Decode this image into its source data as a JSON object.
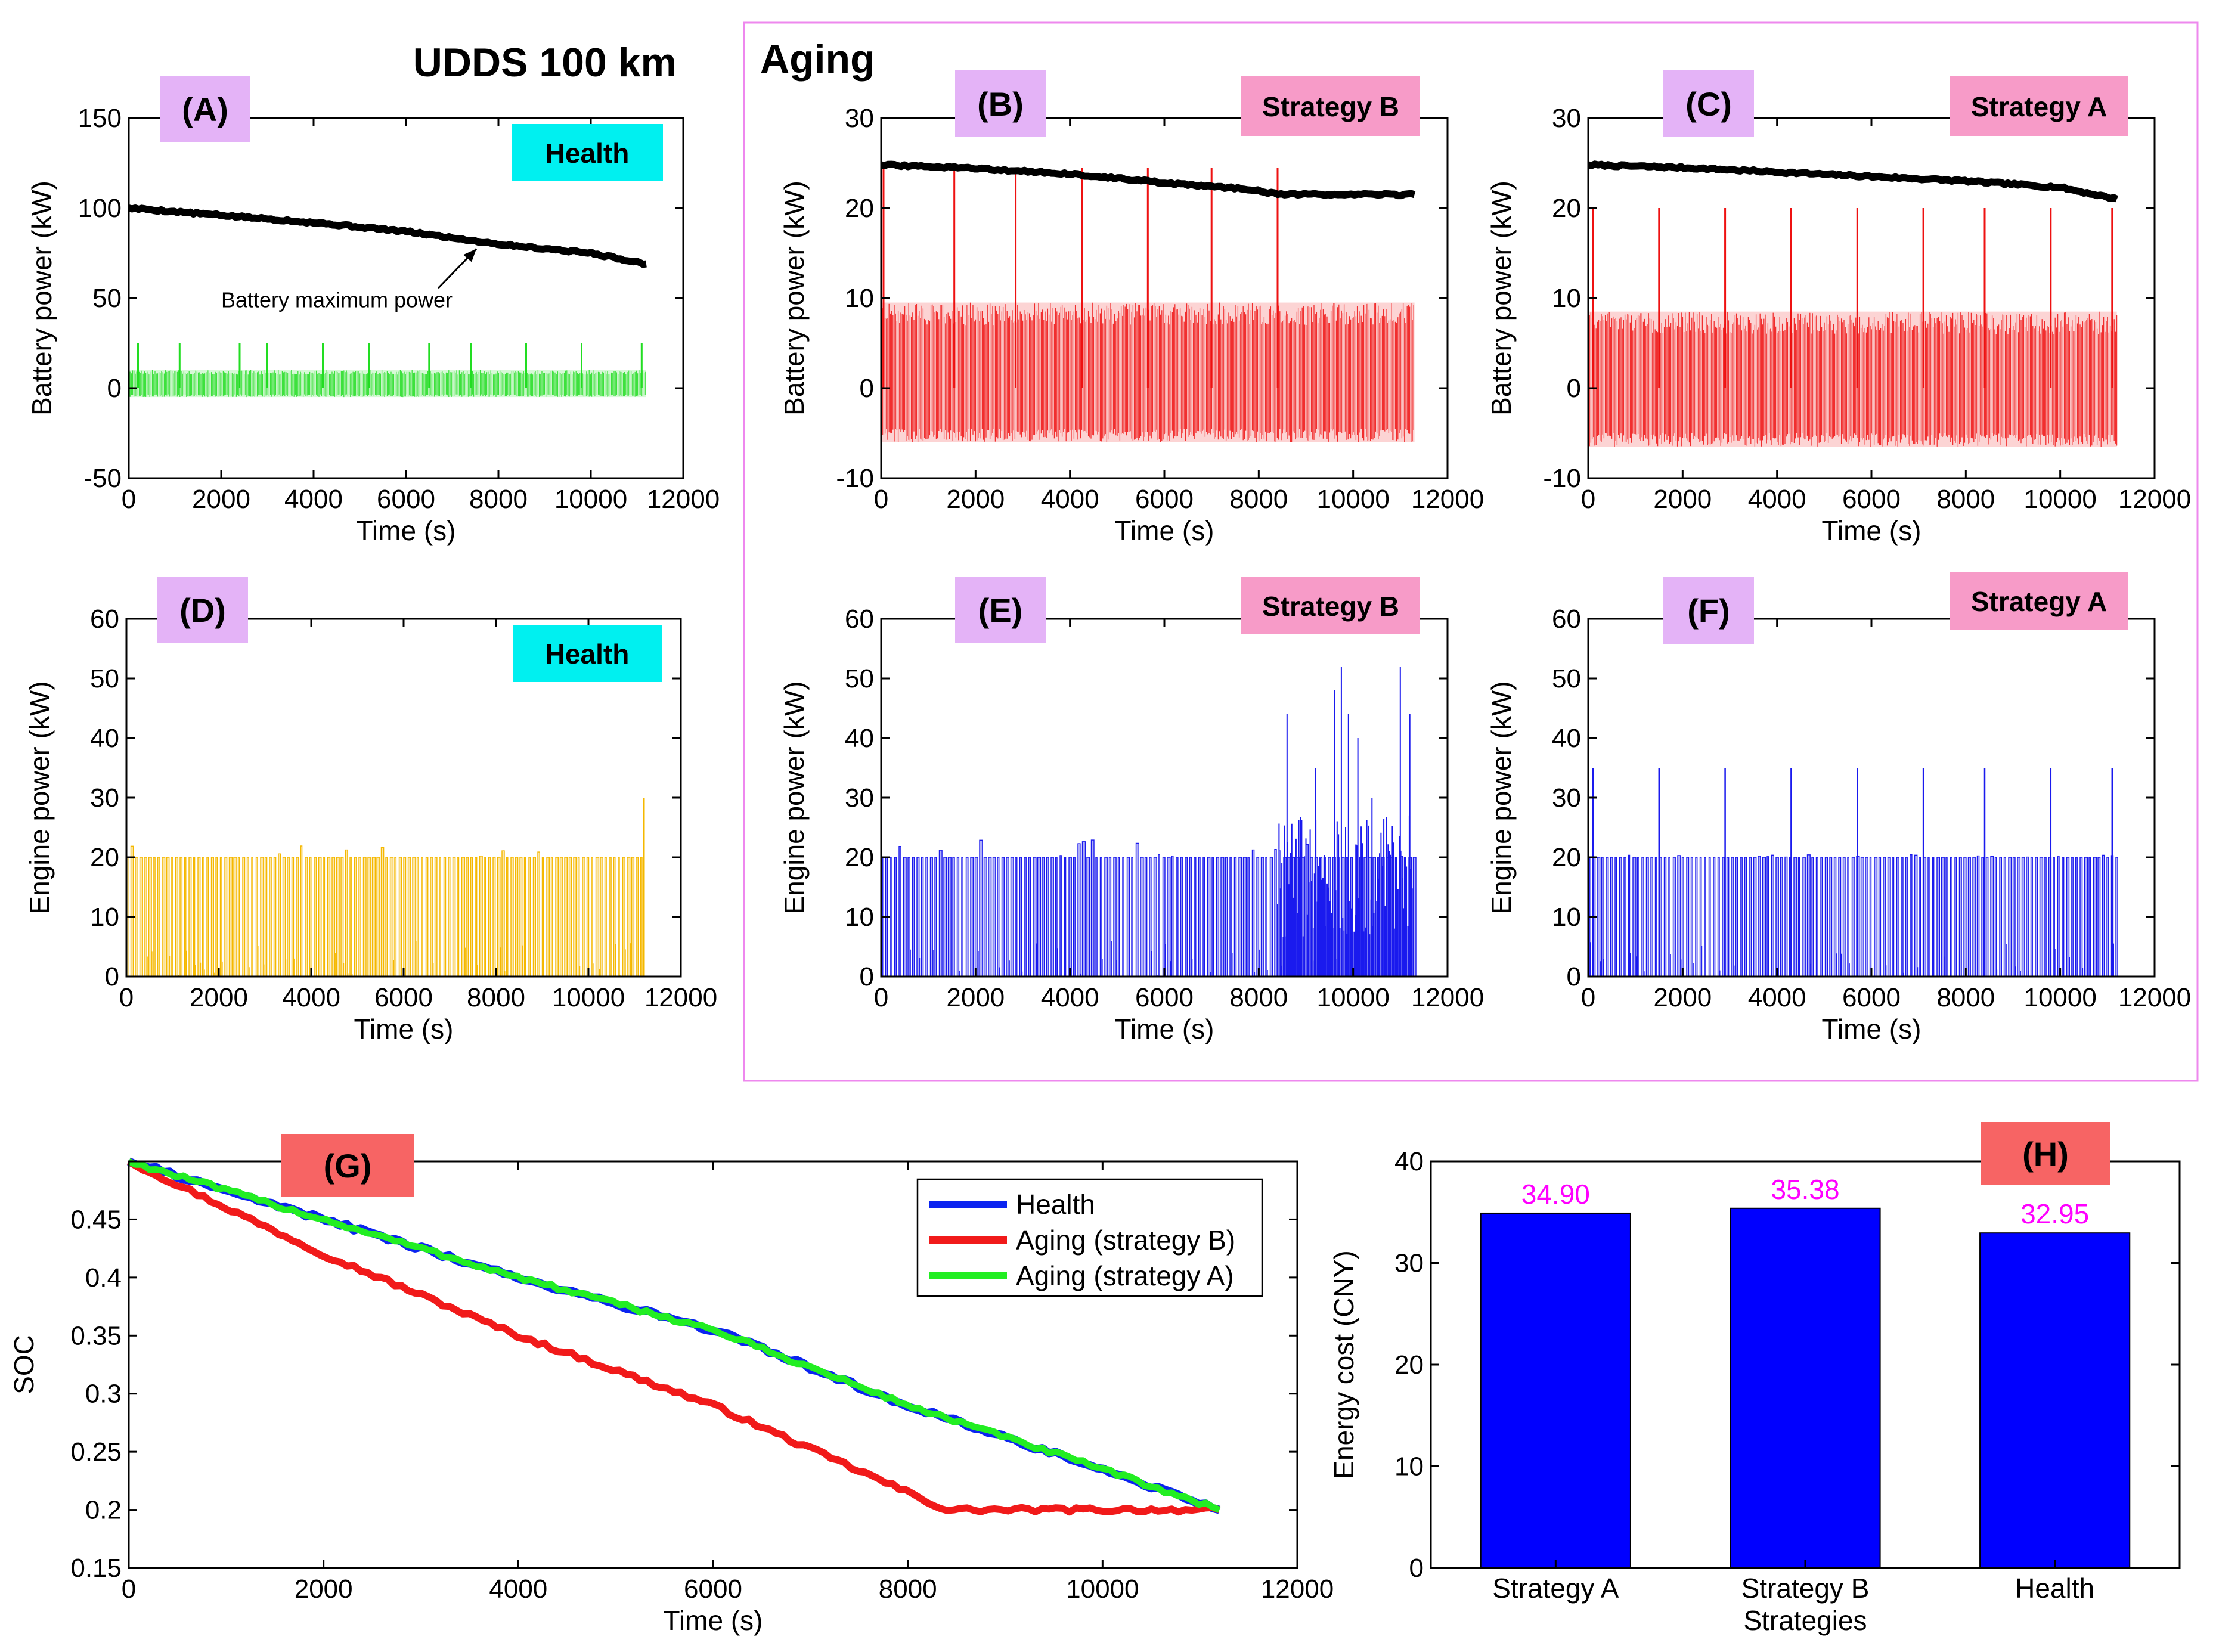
{
  "figure": {
    "title": "UDDS 100 km",
    "aging_group_label": "Aging"
  },
  "colors": {
    "health_battery": "#22dd22",
    "health_engine": "#f5b800",
    "aging_battery": "#ee1111",
    "aging_engine": "#1a1aee",
    "max_power": "#000000",
    "panel_tag_bg": "#e4b3f7",
    "health_tag_bg": "#00f0f0",
    "strategy_tag_bg": "#f79bc8",
    "gh_tag_bg": "#f76464",
    "annotation": "#ff00ff",
    "aging_box": "#ee88ee",
    "soc_health": "#0b24f0",
    "soc_aging_b": "#f11a1a",
    "soc_aging_a": "#22ee22",
    "bar_fill": "#0000ff"
  },
  "chart_data": [
    {
      "id": "A",
      "type": "line",
      "panel_label": "(A)",
      "tag": "Health",
      "xlabel": "Time (s)",
      "ylabel": "Battery power (kW)",
      "xlim": [
        0,
        12000
      ],
      "ylim": [
        -50,
        150
      ],
      "xticks": [
        0,
        2000,
        4000,
        6000,
        8000,
        10000,
        12000
      ],
      "yticks": [
        -50,
        0,
        50,
        100,
        150
      ],
      "series": [
        {
          "name": "Battery maximum power",
          "kind": "max",
          "x": [
            0,
            2000,
            4000,
            6000,
            8000,
            10000,
            11200
          ],
          "y": [
            100,
            96,
            92,
            87,
            80,
            75,
            69
          ]
        },
        {
          "name": "Battery power",
          "kind": "signal",
          "x_end": 11200,
          "max": 25,
          "min": -5,
          "band_top": 10,
          "spikes": [
            200,
            1100,
            2400,
            3000,
            4200,
            5200,
            6500,
            7400,
            8600,
            9800,
            11100
          ]
        }
      ],
      "annotation": {
        "text": "Battery maximum power",
        "x": 7600,
        "y": 82
      }
    },
    {
      "id": "B",
      "type": "line",
      "panel_label": "(B)",
      "tag": "Strategy B",
      "xlabel": "Time (s)",
      "ylabel": "Battery power (kW)",
      "xlim": [
        0,
        12000
      ],
      "ylim": [
        -10,
        30
      ],
      "xticks": [
        0,
        2000,
        4000,
        6000,
        8000,
        10000,
        12000
      ],
      "yticks": [
        -10,
        0,
        10,
        20,
        30
      ],
      "series": [
        {
          "name": "Battery maximum power",
          "kind": "max",
          "x": [
            0,
            2000,
            4000,
            6000,
            8000,
            8400,
            11300
          ],
          "y": [
            24.8,
            24.4,
            23.8,
            22.8,
            22.0,
            21.5,
            21.5
          ]
        },
        {
          "name": "Battery power",
          "kind": "signal",
          "x_end": 11300,
          "max": 24.5,
          "min": -6,
          "band_top": 9.5,
          "spikes": [
            50,
            1550,
            2850,
            4250,
            5650,
            7000,
            8400
          ]
        }
      ]
    },
    {
      "id": "C",
      "type": "line",
      "panel_label": "(C)",
      "tag": "Strategy A",
      "xlabel": "Time (s)",
      "ylabel": "Battery power (kW)",
      "xlim": [
        0,
        12000
      ],
      "ylim": [
        -10,
        30
      ],
      "xticks": [
        0,
        2000,
        4000,
        6000,
        8000,
        10000,
        12000
      ],
      "yticks": [
        -10,
        0,
        10,
        20,
        30
      ],
      "series": [
        {
          "name": "Battery maximum power",
          "kind": "max",
          "x": [
            0,
            2000,
            4000,
            6000,
            8000,
            10000,
            11200
          ],
          "y": [
            24.8,
            24.5,
            24.0,
            23.5,
            23.0,
            22.3,
            21.0
          ]
        },
        {
          "name": "Battery power",
          "kind": "signal",
          "x_end": 11200,
          "max": 20,
          "min": -6.5,
          "band_top": 8.5,
          "spikes": [
            100,
            1500,
            2900,
            4300,
            5700,
            7100,
            8400,
            9800,
            11100
          ]
        }
      ]
    },
    {
      "id": "D",
      "type": "bar-signal",
      "panel_label": "(D)",
      "tag": "Health",
      "xlabel": "Time (s)",
      "ylabel": "Engine power (kW)",
      "xlim": [
        0,
        12000
      ],
      "ylim": [
        0,
        60
      ],
      "xticks": [
        0,
        2000,
        4000,
        6000,
        8000,
        10000,
        12000
      ],
      "yticks": [
        0,
        10,
        20,
        30,
        40,
        50,
        60
      ],
      "series": [
        {
          "name": "Engine power",
          "x_end": 11200,
          "level": 20,
          "peak": 22,
          "last_spike": 30
        }
      ]
    },
    {
      "id": "E",
      "type": "bar-signal",
      "panel_label": "(E)",
      "tag": "Strategy B",
      "xlabel": "Time (s)",
      "ylabel": "Engine power (kW)",
      "xlim": [
        0,
        12000
      ],
      "ylim": [
        0,
        60
      ],
      "xticks": [
        0,
        2000,
        4000,
        6000,
        8000,
        10000,
        12000
      ],
      "yticks": [
        0,
        10,
        20,
        30,
        40,
        50,
        60
      ],
      "series": [
        {
          "name": "Engine power",
          "x_end": 11300,
          "level": 20,
          "peak": 23,
          "high_start": 8400,
          "high_spikes": [
            {
              "x": 8600,
              "y": 44
            },
            {
              "x": 9200,
              "y": 35
            },
            {
              "x": 9600,
              "y": 48
            },
            {
              "x": 9750,
              "y": 52
            },
            {
              "x": 9900,
              "y": 44
            },
            {
              "x": 10100,
              "y": 40
            },
            {
              "x": 10400,
              "y": 30
            },
            {
              "x": 11000,
              "y": 52
            },
            {
              "x": 11200,
              "y": 44
            }
          ]
        }
      ]
    },
    {
      "id": "F",
      "type": "bar-signal",
      "panel_label": "(F)",
      "tag": "Strategy A",
      "xlabel": "Time (s)",
      "ylabel": "Engine power (kW)",
      "xlim": [
        0,
        12000
      ],
      "ylim": [
        0,
        60
      ],
      "xticks": [
        0,
        2000,
        4000,
        6000,
        8000,
        10000,
        12000
      ],
      "yticks": [
        0,
        10,
        20,
        30,
        40,
        50,
        60
      ],
      "series": [
        {
          "name": "Engine power",
          "x_end": 11200,
          "level": 20,
          "peak": 20.5,
          "spike_value": 35,
          "spikes": [
            100,
            1500,
            2900,
            4300,
            5700,
            7100,
            8400,
            9800,
            11100
          ]
        }
      ]
    },
    {
      "id": "G",
      "type": "line",
      "panel_label": "(G)",
      "xlabel": "Time (s)",
      "ylabel": "SOC",
      "xlim": [
        0,
        12000
      ],
      "ylim": [
        0.15,
        0.5
      ],
      "xticks": [
        0,
        2000,
        4000,
        6000,
        8000,
        10000,
        12000
      ],
      "yticks": [
        0.15,
        0.2,
        0.25,
        0.3,
        0.35,
        0.4,
        0.45
      ],
      "legend": [
        "Health",
        "Aging (strategy B)",
        "Aging (strategy A)"
      ],
      "legend_position": "top-right",
      "series": [
        {
          "name": "Health",
          "x": [
            0,
            2000,
            4000,
            6000,
            8000,
            10000,
            11200
          ],
          "y": [
            0.5,
            0.45,
            0.4,
            0.355,
            0.29,
            0.235,
            0.2
          ]
        },
        {
          "name": "Aging (strategy B)",
          "x": [
            0,
            2000,
            4000,
            6000,
            8000,
            8400,
            11200
          ],
          "y": [
            0.5,
            0.42,
            0.35,
            0.29,
            0.215,
            0.2,
            0.2
          ]
        },
        {
          "name": "Aging (strategy A)",
          "x": [
            0,
            2000,
            4000,
            6000,
            8000,
            10000,
            11200
          ],
          "y": [
            0.5,
            0.45,
            0.4,
            0.355,
            0.29,
            0.235,
            0.2
          ]
        }
      ]
    },
    {
      "id": "H",
      "type": "bar",
      "panel_label": "(H)",
      "xlabel": "Strategies",
      "ylabel": "Energy cost (CNY)",
      "ylim": [
        0,
        40
      ],
      "yticks": [
        0,
        10,
        20,
        30,
        40
      ],
      "categories": [
        "Strategy A",
        "Strategy B",
        "Health"
      ],
      "values": [
        34.9,
        35.38,
        32.95
      ],
      "value_labels": [
        "34.90",
        "35.38",
        "32.95"
      ]
    }
  ]
}
